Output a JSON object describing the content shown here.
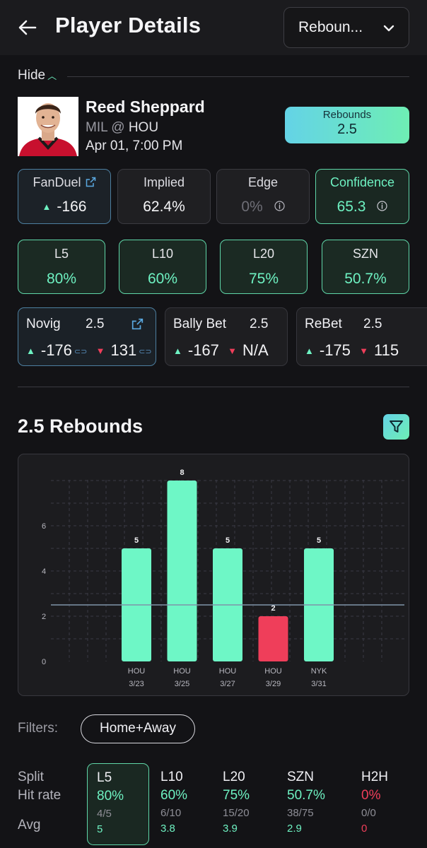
{
  "header": {
    "title": "Player Details",
    "stat_selector": "Reboun..."
  },
  "hide_label": "Hide",
  "player": {
    "name": "Reed Sheppard",
    "team": "MIL",
    "at": "@",
    "opponent": "HOU",
    "datetime": "Apr 01, 7:00 PM"
  },
  "line_badge": {
    "label": "Rebounds",
    "value": "2.5"
  },
  "cards": {
    "fanduel": {
      "label": "FanDuel",
      "value": "-166"
    },
    "implied": {
      "label": "Implied",
      "value": "62.4%"
    },
    "edge": {
      "label": "Edge",
      "value": "0%"
    },
    "confidence": {
      "label": "Confidence",
      "value": "65.3"
    }
  },
  "hit_rates": [
    {
      "label": "L5",
      "value": "80%"
    },
    {
      "label": "L10",
      "value": "60%"
    },
    {
      "label": "L20",
      "value": "75%"
    },
    {
      "label": "SZN",
      "value": "50.7%"
    }
  ],
  "books": [
    {
      "name": "Novig",
      "line": "2.5",
      "over": "-176",
      "under": "131"
    },
    {
      "name": "Bally Bet",
      "line": "2.5",
      "over": "-167",
      "under": "N/A"
    },
    {
      "name": "ReBet",
      "line": "2.5",
      "over": "-175",
      "under": "115"
    }
  ],
  "section_title": "2.5 Rebounds",
  "chart_data": {
    "type": "bar",
    "categories": [
      "HOU 3/23",
      "HOU 3/25",
      "HOU 3/27",
      "HOU 3/29",
      "NYK 3/31"
    ],
    "values": [
      5,
      8,
      5,
      2,
      5
    ],
    "data_labels": [
      "5",
      "8",
      "5",
      "2",
      "5"
    ],
    "line": 2.5,
    "ylim": [
      0,
      8
    ],
    "yticks": [
      "0",
      "2",
      "4",
      "6"
    ],
    "grid": true,
    "colors": {
      "over": "#6ef7c6",
      "under": "#ef3e5a",
      "line": "#7f93a8"
    }
  },
  "filters": {
    "label": "Filters:",
    "value": "Home+Away"
  },
  "split_table": {
    "row_labels": [
      "Split",
      "Hit rate",
      "Avg"
    ],
    "columns": [
      {
        "split": "L5",
        "hit_rate": "80%",
        "fraction": "4/5",
        "avg": "5"
      },
      {
        "split": "L10",
        "hit_rate": "60%",
        "fraction": "6/10",
        "avg": "3.8"
      },
      {
        "split": "L20",
        "hit_rate": "75%",
        "fraction": "15/20",
        "avg": "3.9"
      },
      {
        "split": "SZN",
        "hit_rate": "50.7%",
        "fraction": "38/75",
        "avg": "2.9"
      },
      {
        "split": "H2H",
        "hit_rate": "0%",
        "fraction": "0/0",
        "avg": "0"
      }
    ]
  }
}
